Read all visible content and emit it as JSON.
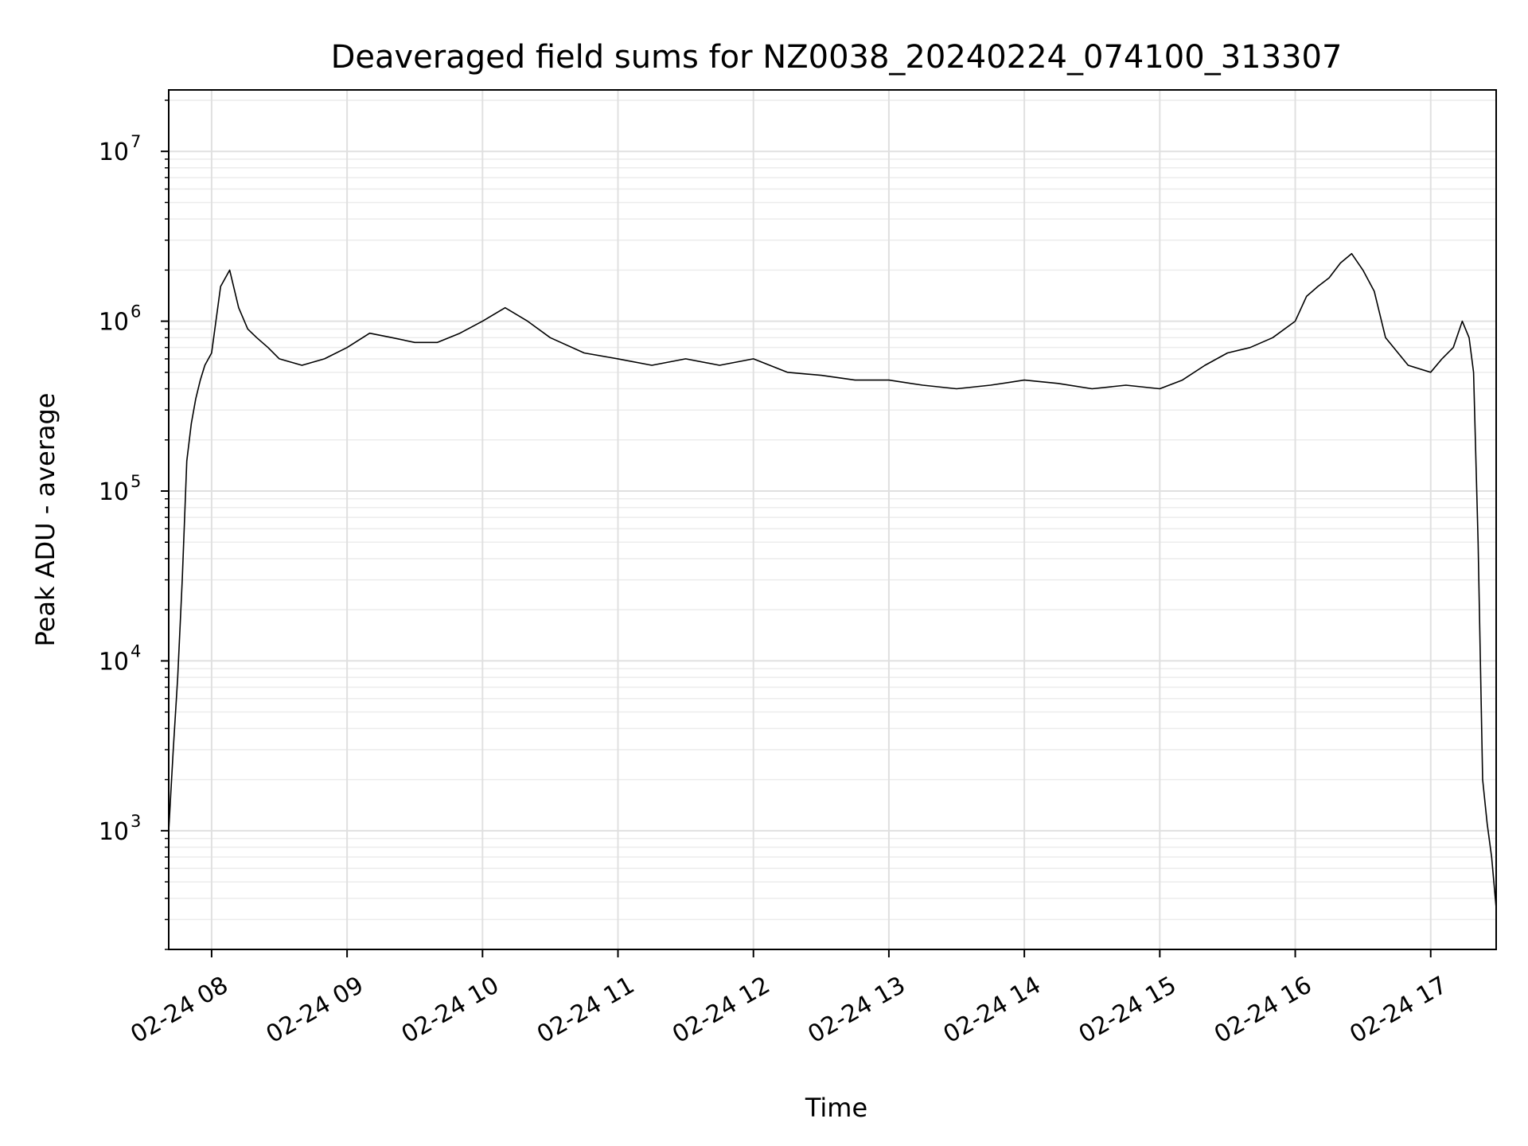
{
  "chart_data": {
    "type": "line",
    "title": "Deaveraged field sums for NZ0038_20240224_074100_313307",
    "xlabel": "Time",
    "ylabel": "Peak ADU - average",
    "yscale": "log",
    "ylim": [
      200,
      23000000
    ],
    "xlim": [
      "2024-02-24T07:41:00",
      "2024-02-24T17:29:00"
    ],
    "grid": "major and minor, both axes",
    "line_color": "#000000",
    "x_ticks": [
      "02-24 08",
      "02-24 09",
      "02-24 10",
      "02-24 11",
      "02-24 12",
      "02-24 13",
      "02-24 14",
      "02-24 15",
      "02-24 16",
      "02-24 17"
    ],
    "x_tick_times": [
      "2024-02-24T08:00:00",
      "2024-02-24T09:00:00",
      "2024-02-24T10:00:00",
      "2024-02-24T11:00:00",
      "2024-02-24T12:00:00",
      "2024-02-24T13:00:00",
      "2024-02-24T14:00:00",
      "2024-02-24T15:00:00",
      "2024-02-24T16:00:00",
      "2024-02-24T17:00:00"
    ],
    "y_ticks": [
      {
        "value": 1000,
        "base": "10",
        "exp": "3"
      },
      {
        "value": 10000,
        "base": "10",
        "exp": "4"
      },
      {
        "value": 100000,
        "base": "10",
        "exp": "5"
      },
      {
        "value": 1000000,
        "base": "10",
        "exp": "6"
      },
      {
        "value": 10000000,
        "base": "10",
        "exp": "7"
      }
    ],
    "series": [
      {
        "x": [
          "2024-02-24T07:41:00",
          "2024-02-24T07:43:00",
          "2024-02-24T07:45:00",
          "2024-02-24T07:47:00",
          "2024-02-24T07:49:00",
          "2024-02-24T07:51:00",
          "2024-02-24T07:53:00",
          "2024-02-24T07:55:00",
          "2024-02-24T07:57:00",
          "2024-02-24T08:00:00",
          "2024-02-24T08:04:00",
          "2024-02-24T08:08:00",
          "2024-02-24T08:12:00",
          "2024-02-24T08:16:00",
          "2024-02-24T08:20:00",
          "2024-02-24T08:25:00",
          "2024-02-24T08:30:00",
          "2024-02-24T08:40:00",
          "2024-02-24T08:50:00",
          "2024-02-24T09:00:00",
          "2024-02-24T09:10:00",
          "2024-02-24T09:20:00",
          "2024-02-24T09:30:00",
          "2024-02-24T09:40:00",
          "2024-02-24T09:50:00",
          "2024-02-24T10:00:00",
          "2024-02-24T10:10:00",
          "2024-02-24T10:20:00",
          "2024-02-24T10:30:00",
          "2024-02-24T10:45:00",
          "2024-02-24T11:00:00",
          "2024-02-24T11:15:00",
          "2024-02-24T11:30:00",
          "2024-02-24T11:45:00",
          "2024-02-24T12:00:00",
          "2024-02-24T12:15:00",
          "2024-02-24T12:30:00",
          "2024-02-24T12:45:00",
          "2024-02-24T13:00:00",
          "2024-02-24T13:15:00",
          "2024-02-24T13:30:00",
          "2024-02-24T13:45:00",
          "2024-02-24T14:00:00",
          "2024-02-24T14:15:00",
          "2024-02-24T14:30:00",
          "2024-02-24T14:45:00",
          "2024-02-24T15:00:00",
          "2024-02-24T15:10:00",
          "2024-02-24T15:20:00",
          "2024-02-24T15:30:00",
          "2024-02-24T15:40:00",
          "2024-02-24T15:50:00",
          "2024-02-24T16:00:00",
          "2024-02-24T16:05:00",
          "2024-02-24T16:10:00",
          "2024-02-24T16:15:00",
          "2024-02-24T16:20:00",
          "2024-02-24T16:25:00",
          "2024-02-24T16:30:00",
          "2024-02-24T16:35:00",
          "2024-02-24T16:40:00",
          "2024-02-24T16:50:00",
          "2024-02-24T17:00:00",
          "2024-02-24T17:05:00",
          "2024-02-24T17:10:00",
          "2024-02-24T17:14:00",
          "2024-02-24T17:17:00",
          "2024-02-24T17:19:00",
          "2024-02-24T17:21:00",
          "2024-02-24T17:23:00",
          "2024-02-24T17:25:00",
          "2024-02-24T17:27:00",
          "2024-02-24T17:29:00"
        ],
        "y": [
          1000,
          3000,
          8000,
          30000,
          150000,
          250000,
          350000,
          450000,
          550000,
          650000,
          1600000,
          2000000,
          1200000,
          900000,
          800000,
          700000,
          600000,
          550000,
          600000,
          700000,
          850000,
          800000,
          750000,
          750000,
          850000,
          1000000,
          1200000,
          1000000,
          800000,
          650000,
          600000,
          550000,
          600000,
          550000,
          600000,
          500000,
          480000,
          450000,
          450000,
          420000,
          400000,
          420000,
          450000,
          430000,
          400000,
          420000,
          400000,
          450000,
          550000,
          650000,
          700000,
          800000,
          1000000,
          1400000,
          1600000,
          1800000,
          2200000,
          2500000,
          2000000,
          1500000,
          800000,
          550000,
          500000,
          600000,
          700000,
          1000000,
          800000,
          500000,
          50000,
          2000,
          1100,
          700,
          350
        ]
      }
    ]
  }
}
